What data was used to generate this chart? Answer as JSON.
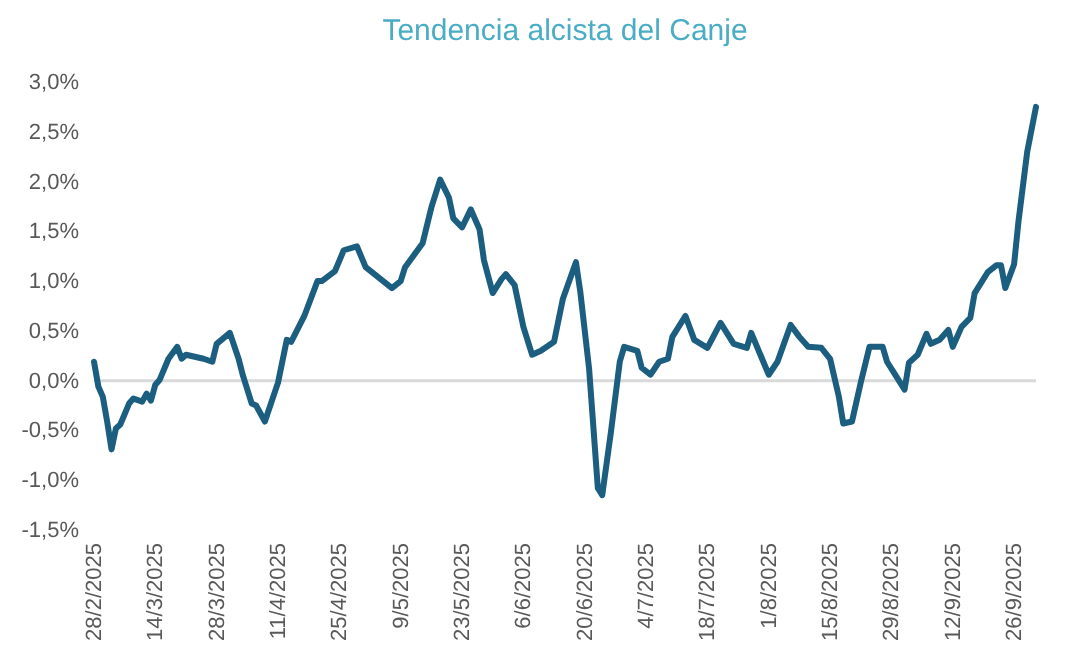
{
  "chart_data": {
    "type": "line",
    "title": "Tendencia alcista del Canje",
    "x": [
      "2025-02-28",
      "2025-03-01",
      "2025-03-02",
      "2025-03-03",
      "2025-03-04",
      "2025-03-05",
      "2025-03-06",
      "2025-03-08",
      "2025-03-09",
      "2025-03-11",
      "2025-03-12",
      "2025-03-13",
      "2025-03-14",
      "2025-03-15",
      "2025-03-17",
      "2025-03-19",
      "2025-03-20",
      "2025-03-21",
      "2025-03-25",
      "2025-03-27",
      "2025-03-28",
      "2025-03-31",
      "2025-04-02",
      "2025-04-03",
      "2025-04-05",
      "2025-04-06",
      "2025-04-08",
      "2025-04-11",
      "2025-04-13",
      "2025-04-14",
      "2025-04-17",
      "2025-04-20",
      "2025-04-21",
      "2025-04-24",
      "2025-04-26",
      "2025-04-29",
      "2025-05-01",
      "2025-05-05",
      "2025-05-07",
      "2025-05-09",
      "2025-05-10",
      "2025-05-14",
      "2025-05-16",
      "2025-05-18",
      "2025-05-20",
      "2025-05-21",
      "2025-05-23",
      "2025-05-25",
      "2025-05-27",
      "2025-05-28",
      "2025-05-30",
      "2025-06-01",
      "2025-06-02",
      "2025-06-04",
      "2025-06-06",
      "2025-06-08",
      "2025-06-10",
      "2025-06-13",
      "2025-06-15",
      "2025-06-18",
      "2025-06-19",
      "2025-06-21",
      "2025-06-23",
      "2025-06-24",
      "2025-06-26",
      "2025-06-28",
      "2025-06-29",
      "2025-07-02",
      "2025-07-03",
      "2025-07-05",
      "2025-07-07",
      "2025-07-09",
      "2025-07-10",
      "2025-07-13",
      "2025-07-15",
      "2025-07-18",
      "2025-07-21",
      "2025-07-24",
      "2025-07-27",
      "2025-07-28",
      "2025-08-01",
      "2025-08-03",
      "2025-08-06",
      "2025-08-08",
      "2025-08-10",
      "2025-08-13",
      "2025-08-15",
      "2025-08-17",
      "2025-08-18",
      "2025-08-20",
      "2025-08-22",
      "2025-08-24",
      "2025-08-27",
      "2025-08-28",
      "2025-08-30",
      "2025-09-01",
      "2025-09-02",
      "2025-09-04",
      "2025-09-06",
      "2025-09-07",
      "2025-09-09",
      "2025-09-11",
      "2025-09-12",
      "2025-09-14",
      "2025-09-16",
      "2025-09-17",
      "2025-09-20",
      "2025-09-22",
      "2025-09-23",
      "2025-09-24",
      "2025-09-26",
      "2025-09-27",
      "2025-09-29",
      "2025-10-01"
    ],
    "series": [
      {
        "color": "#1b5e80",
        "values": [
          0.19,
          -0.06,
          -0.16,
          -0.41,
          -0.69,
          -0.48,
          -0.44,
          -0.23,
          -0.18,
          -0.21,
          -0.13,
          -0.2,
          -0.04,
          0.01,
          0.22,
          0.34,
          0.22,
          0.26,
          0.22,
          0.19,
          0.37,
          0.48,
          0.22,
          0.05,
          -0.23,
          -0.25,
          -0.41,
          -0.02,
          0.41,
          0.39,
          0.65,
          1.0,
          1.0,
          1.1,
          1.31,
          1.35,
          1.14,
          1.0,
          0.93,
          1.0,
          1.14,
          1.38,
          1.74,
          2.02,
          1.84,
          1.63,
          1.54,
          1.72,
          1.52,
          1.21,
          0.88,
          1.02,
          1.07,
          0.96,
          0.54,
          0.26,
          0.3,
          0.39,
          0.82,
          1.19,
          0.89,
          0.12,
          -1.08,
          -1.15,
          -0.51,
          0.19,
          0.34,
          0.3,
          0.13,
          0.06,
          0.19,
          0.22,
          0.44,
          0.65,
          0.41,
          0.33,
          0.58,
          0.37,
          0.33,
          0.48,
          0.06,
          0.19,
          0.56,
          0.44,
          0.34,
          0.33,
          0.22,
          -0.16,
          -0.43,
          -0.41,
          -0.02,
          0.34,
          0.34,
          0.19,
          0.05,
          -0.09,
          0.18,
          0.26,
          0.47,
          0.37,
          0.41,
          0.51,
          0.34,
          0.54,
          0.63,
          0.88,
          1.09,
          1.16,
          1.16,
          0.93,
          1.17,
          1.6,
          2.3,
          2.75
        ]
      }
    ],
    "xlim": [
      "2025-02-28",
      "2025-10-01"
    ],
    "xticks": [
      {
        "value": "2025-02-28",
        "label": "28/2/2025"
      },
      {
        "value": "2025-03-14",
        "label": "14/3/2025"
      },
      {
        "value": "2025-03-28",
        "label": "28/3/2025"
      },
      {
        "value": "2025-04-11",
        "label": "11/4/2025"
      },
      {
        "value": "2025-04-25",
        "label": "25/4/2025"
      },
      {
        "value": "2025-05-09",
        "label": "9/5/2025"
      },
      {
        "value": "2025-05-23",
        "label": "23/5/2025"
      },
      {
        "value": "2025-06-06",
        "label": "6/6/2025"
      },
      {
        "value": "2025-06-20",
        "label": "20/6/2025"
      },
      {
        "value": "2025-07-04",
        "label": "4/7/2025"
      },
      {
        "value": "2025-07-18",
        "label": "18/7/2025"
      },
      {
        "value": "2025-08-01",
        "label": "1/8/2025"
      },
      {
        "value": "2025-08-15",
        "label": "15/8/2025"
      },
      {
        "value": "2025-08-29",
        "label": "29/8/2025"
      },
      {
        "value": "2025-09-12",
        "label": "12/9/2025"
      },
      {
        "value": "2025-09-26",
        "label": "26/9/2025"
      }
    ],
    "ylim": [
      -1.5,
      3.0
    ],
    "yticks": [
      {
        "value": -1.5,
        "label": "-1,5%"
      },
      {
        "value": -1.0,
        "label": "-1,0%"
      },
      {
        "value": -0.5,
        "label": "-0,5%"
      },
      {
        "value": 0,
        "label": "0,0%"
      },
      {
        "value": 0.5,
        "label": "0,5%"
      },
      {
        "value": 1.0,
        "label": "1,0%"
      },
      {
        "value": 1.5,
        "label": "1,5%"
      },
      {
        "value": 2.0,
        "label": "2,0%"
      },
      {
        "value": 2.5,
        "label": "2,5%"
      },
      {
        "value": 3.0,
        "label": "3,0%"
      }
    ],
    "ref_lines": [
      {
        "axis": "y",
        "value": 0,
        "color": "#d9d9d9"
      }
    ],
    "grid": false,
    "marker": "none",
    "line_style": "solid"
  }
}
